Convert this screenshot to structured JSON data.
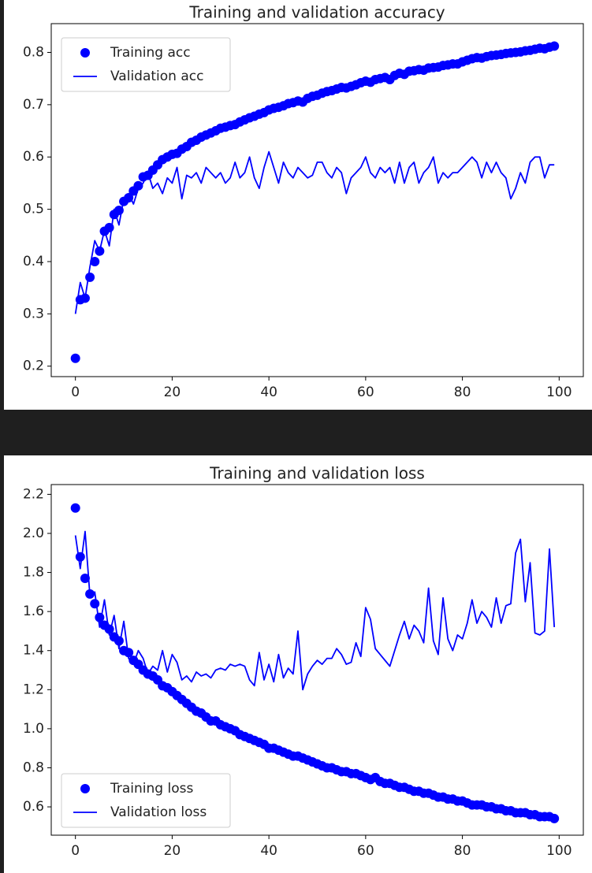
{
  "chart_data": [
    {
      "type": "line",
      "title": "Training and validation accuracy",
      "x": [
        0,
        1,
        2,
        3,
        4,
        5,
        6,
        7,
        8,
        9,
        10,
        11,
        12,
        13,
        14,
        15,
        16,
        17,
        18,
        19,
        20,
        21,
        22,
        23,
        24,
        25,
        26,
        27,
        28,
        29,
        30,
        31,
        32,
        33,
        34,
        35,
        36,
        37,
        38,
        39,
        40,
        41,
        42,
        43,
        44,
        45,
        46,
        47,
        48,
        49,
        50,
        51,
        52,
        53,
        54,
        55,
        56,
        57,
        58,
        59,
        60,
        61,
        62,
        63,
        64,
        65,
        66,
        67,
        68,
        69,
        70,
        71,
        72,
        73,
        74,
        75,
        76,
        77,
        78,
        79,
        80,
        81,
        82,
        83,
        84,
        85,
        86,
        87,
        88,
        89,
        90,
        91,
        92,
        93,
        94,
        95,
        96,
        97,
        98,
        99
      ],
      "series": [
        {
          "name": "Training acc",
          "color": "#0000ff",
          "mode": "markers",
          "values": [
            0.215,
            0.327,
            0.33,
            0.37,
            0.4,
            0.42,
            0.458,
            0.465,
            0.49,
            0.498,
            0.515,
            0.522,
            0.535,
            0.545,
            0.562,
            0.565,
            0.575,
            0.585,
            0.595,
            0.6,
            0.605,
            0.607,
            0.615,
            0.62,
            0.628,
            0.632,
            0.638,
            0.642,
            0.646,
            0.65,
            0.655,
            0.657,
            0.66,
            0.662,
            0.667,
            0.671,
            0.675,
            0.678,
            0.682,
            0.685,
            0.69,
            0.693,
            0.695,
            0.698,
            0.702,
            0.704,
            0.707,
            0.705,
            0.712,
            0.716,
            0.718,
            0.722,
            0.725,
            0.727,
            0.73,
            0.733,
            0.732,
            0.735,
            0.738,
            0.742,
            0.745,
            0.743,
            0.748,
            0.75,
            0.752,
            0.748,
            0.756,
            0.76,
            0.758,
            0.764,
            0.765,
            0.767,
            0.766,
            0.77,
            0.771,
            0.772,
            0.775,
            0.776,
            0.778,
            0.778,
            0.782,
            0.785,
            0.788,
            0.79,
            0.789,
            0.792,
            0.794,
            0.795,
            0.796,
            0.798,
            0.799,
            0.8,
            0.801,
            0.803,
            0.804,
            0.806,
            0.808,
            0.807,
            0.81,
            0.812
          ]
        },
        {
          "name": "Validation acc",
          "color": "#0000ff",
          "mode": "line",
          "values": [
            0.3,
            0.36,
            0.33,
            0.39,
            0.44,
            0.42,
            0.46,
            0.43,
            0.5,
            0.47,
            0.52,
            0.53,
            0.51,
            0.54,
            0.55,
            0.57,
            0.54,
            0.55,
            0.53,
            0.56,
            0.55,
            0.58,
            0.52,
            0.565,
            0.56,
            0.57,
            0.55,
            0.58,
            0.57,
            0.56,
            0.57,
            0.55,
            0.56,
            0.59,
            0.56,
            0.57,
            0.6,
            0.56,
            0.54,
            0.58,
            0.61,
            0.58,
            0.55,
            0.59,
            0.57,
            0.56,
            0.58,
            0.57,
            0.56,
            0.565,
            0.59,
            0.59,
            0.57,
            0.56,
            0.58,
            0.57,
            0.53,
            0.56,
            0.57,
            0.58,
            0.6,
            0.57,
            0.56,
            0.58,
            0.57,
            0.58,
            0.55,
            0.59,
            0.55,
            0.58,
            0.59,
            0.55,
            0.57,
            0.58,
            0.6,
            0.55,
            0.57,
            0.56,
            0.57,
            0.57,
            0.58,
            0.59,
            0.6,
            0.59,
            0.56,
            0.59,
            0.57,
            0.59,
            0.57,
            0.56,
            0.52,
            0.54,
            0.57,
            0.55,
            0.59,
            0.6,
            0.6,
            0.56,
            0.585,
            0.585
          ]
        }
      ],
      "xlim": [
        -5,
        105
      ],
      "xticks": [
        0,
        20,
        40,
        60,
        80,
        100
      ],
      "ylim": [
        0.18,
        0.855
      ],
      "yticks": [
        0.2,
        0.3,
        0.4,
        0.5,
        0.6,
        0.7,
        0.8
      ],
      "legend": "upper left"
    },
    {
      "type": "line",
      "title": "Training and validation loss",
      "x": [
        0,
        1,
        2,
        3,
        4,
        5,
        6,
        7,
        8,
        9,
        10,
        11,
        12,
        13,
        14,
        15,
        16,
        17,
        18,
        19,
        20,
        21,
        22,
        23,
        24,
        25,
        26,
        27,
        28,
        29,
        30,
        31,
        32,
        33,
        34,
        35,
        36,
        37,
        38,
        39,
        40,
        41,
        42,
        43,
        44,
        45,
        46,
        47,
        48,
        49,
        50,
        51,
        52,
        53,
        54,
        55,
        56,
        57,
        58,
        59,
        60,
        61,
        62,
        63,
        64,
        65,
        66,
        67,
        68,
        69,
        70,
        71,
        72,
        73,
        74,
        75,
        76,
        77,
        78,
        79,
        80,
        81,
        82,
        83,
        84,
        85,
        86,
        87,
        88,
        89,
        90,
        91,
        92,
        93,
        94,
        95,
        96,
        97,
        98,
        99
      ],
      "series": [
        {
          "name": "Training loss",
          "color": "#0000ff",
          "mode": "markers",
          "values": [
            2.13,
            1.88,
            1.77,
            1.69,
            1.64,
            1.57,
            1.53,
            1.51,
            1.47,
            1.45,
            1.4,
            1.39,
            1.35,
            1.33,
            1.3,
            1.28,
            1.27,
            1.25,
            1.22,
            1.21,
            1.19,
            1.17,
            1.15,
            1.13,
            1.11,
            1.09,
            1.08,
            1.06,
            1.04,
            1.04,
            1.02,
            1.01,
            1.0,
            0.99,
            0.97,
            0.96,
            0.95,
            0.94,
            0.93,
            0.92,
            0.9,
            0.9,
            0.89,
            0.88,
            0.87,
            0.86,
            0.86,
            0.85,
            0.84,
            0.83,
            0.82,
            0.81,
            0.8,
            0.8,
            0.79,
            0.78,
            0.78,
            0.77,
            0.77,
            0.76,
            0.75,
            0.74,
            0.75,
            0.73,
            0.72,
            0.72,
            0.71,
            0.7,
            0.7,
            0.69,
            0.68,
            0.68,
            0.67,
            0.67,
            0.66,
            0.65,
            0.65,
            0.64,
            0.64,
            0.63,
            0.63,
            0.62,
            0.61,
            0.61,
            0.61,
            0.6,
            0.6,
            0.59,
            0.59,
            0.58,
            0.58,
            0.57,
            0.57,
            0.57,
            0.56,
            0.56,
            0.55,
            0.55,
            0.55,
            0.54
          ]
        },
        {
          "name": "Validation loss",
          "color": "#0000ff",
          "mode": "line",
          "values": [
            1.99,
            1.82,
            2.01,
            1.68,
            1.7,
            1.52,
            1.66,
            1.48,
            1.58,
            1.41,
            1.55,
            1.36,
            1.33,
            1.4,
            1.36,
            1.28,
            1.32,
            1.3,
            1.4,
            1.29,
            1.38,
            1.34,
            1.25,
            1.27,
            1.24,
            1.29,
            1.27,
            1.28,
            1.26,
            1.3,
            1.31,
            1.3,
            1.33,
            1.32,
            1.33,
            1.32,
            1.25,
            1.22,
            1.39,
            1.25,
            1.33,
            1.24,
            1.38,
            1.26,
            1.31,
            1.28,
            1.5,
            1.2,
            1.28,
            1.32,
            1.35,
            1.33,
            1.36,
            1.36,
            1.41,
            1.38,
            1.33,
            1.34,
            1.44,
            1.37,
            1.62,
            1.56,
            1.41,
            1.38,
            1.35,
            1.32,
            1.4,
            1.48,
            1.55,
            1.46,
            1.53,
            1.5,
            1.44,
            1.72,
            1.45,
            1.38,
            1.67,
            1.46,
            1.4,
            1.48,
            1.46,
            1.54,
            1.66,
            1.54,
            1.6,
            1.57,
            1.52,
            1.67,
            1.54,
            1.63,
            1.64,
            1.9,
            1.97,
            1.65,
            1.85,
            1.49,
            1.48,
            1.5,
            1.92,
            1.52
          ]
        }
      ],
      "xlim": [
        -5,
        105
      ],
      "xticks": [
        0,
        20,
        40,
        60,
        80,
        100
      ],
      "ylim": [
        0.455,
        2.25
      ],
      "yticks": [
        0.6,
        0.8,
        {
          "value": 1,
          "label": "1.0"
        },
        1.2,
        1.4,
        1.6,
        1.8,
        {
          "value": 2,
          "label": "2.0"
        },
        2.2
      ],
      "legend": "lower left"
    }
  ]
}
